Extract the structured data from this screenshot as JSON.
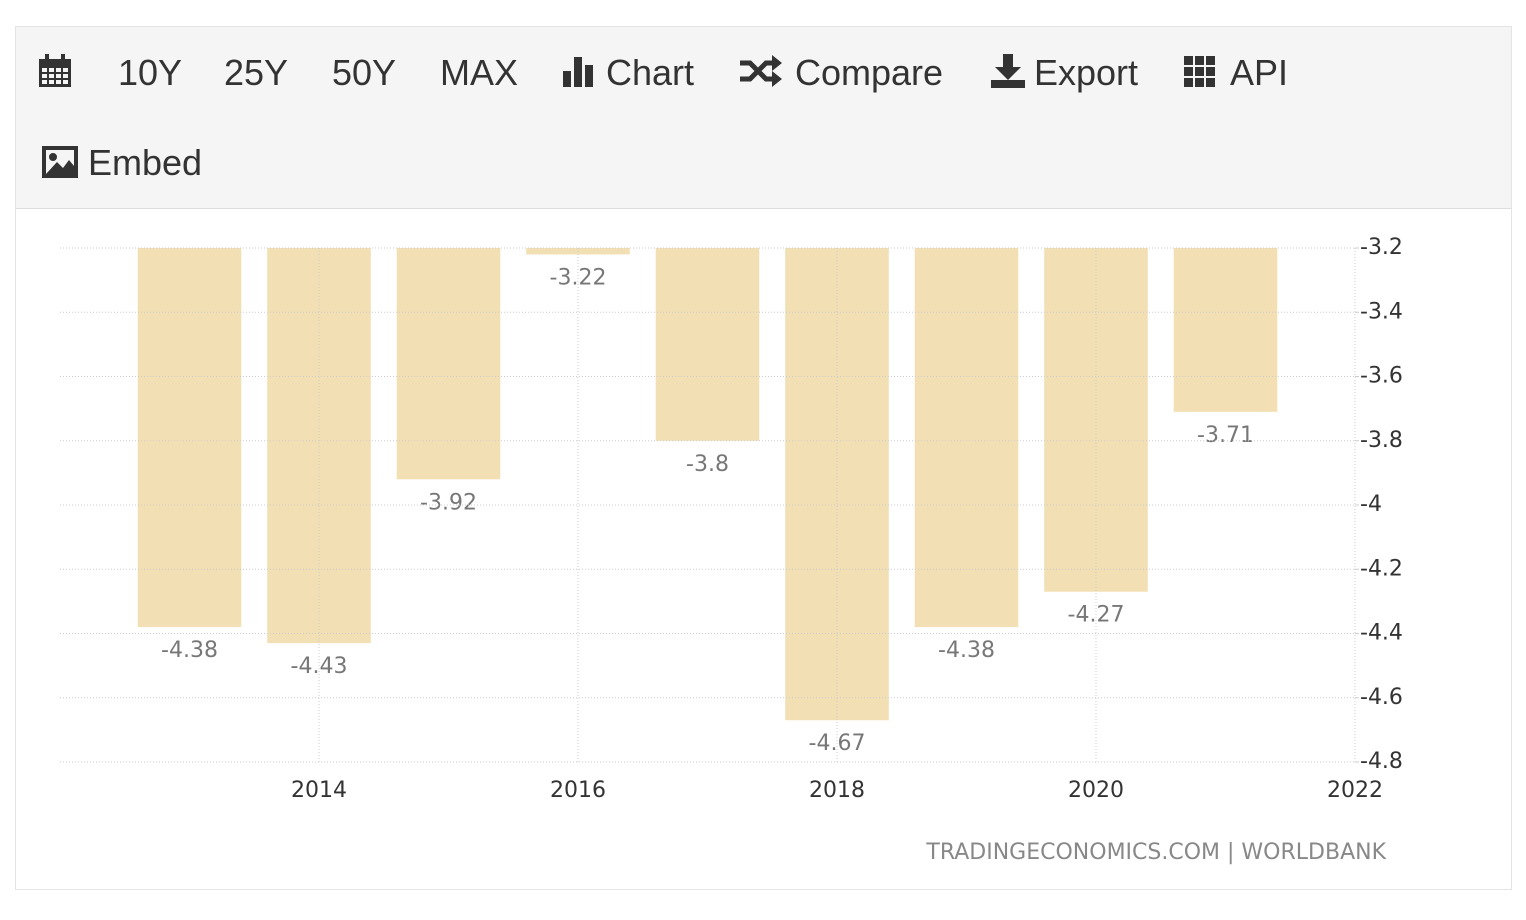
{
  "toolbar": {
    "items": [
      "10Y",
      "25Y",
      "50Y",
      "MAX",
      "Chart",
      "Compare",
      "Export",
      "API",
      "Embed"
    ]
  },
  "chart_data": {
    "type": "bar",
    "x": [
      2013,
      2014,
      2015,
      2016,
      2017,
      2018,
      2019,
      2020,
      2021
    ],
    "values": [
      -4.38,
      -4.43,
      -3.92,
      -3.22,
      -3.8,
      -4.67,
      -4.38,
      -4.27,
      -3.71
    ],
    "color": "#f2dfb3",
    "xlim": [
      2012,
      2022
    ],
    "xticks": [
      2014,
      2016,
      2018,
      2020,
      2022
    ],
    "ylim": [
      -4.8,
      -3.2
    ],
    "yticks": [
      -3.2,
      -3.4,
      -3.6,
      -3.8,
      -4,
      -4.2,
      -4.4,
      -4.6,
      -4.8
    ],
    "grid": true,
    "source": "TRADINGECONOMICS.COM | WORLDBANK"
  }
}
